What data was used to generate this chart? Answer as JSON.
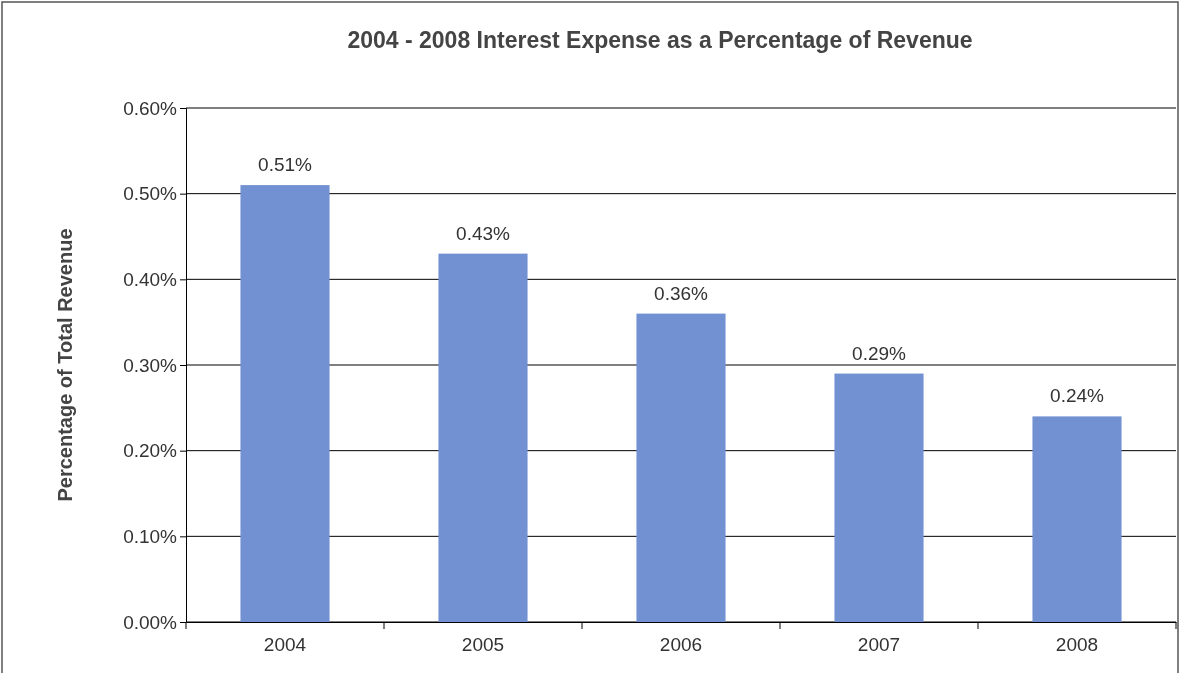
{
  "chart_data": {
    "type": "bar",
    "title": "2004 - 2008 Interest Expense as a Percentage of Revenue",
    "ylabel": "Percentage of Total Revenue",
    "categories": [
      "2004",
      "2005",
      "2006",
      "2007",
      "2008"
    ],
    "values": [
      0.51,
      0.43,
      0.36,
      0.29,
      0.24
    ],
    "value_labels": [
      "0.51%",
      "0.43%",
      "0.36%",
      "0.29%",
      "0.24%"
    ],
    "color": "#7291d2",
    "ylim": [
      0,
      0.6
    ],
    "yticks": [
      {
        "value": 0,
        "label": "0.00%"
      },
      {
        "value": 0.1,
        "label": "0.10%"
      },
      {
        "value": 0.2,
        "label": "0.20%"
      },
      {
        "value": 0.3,
        "label": "0.30%"
      },
      {
        "value": 0.4,
        "label": "0.40%"
      },
      {
        "value": 0.5,
        "label": "0.50%"
      },
      {
        "value": 0.6,
        "label": "0.60%"
      }
    ],
    "grid": "y"
  }
}
